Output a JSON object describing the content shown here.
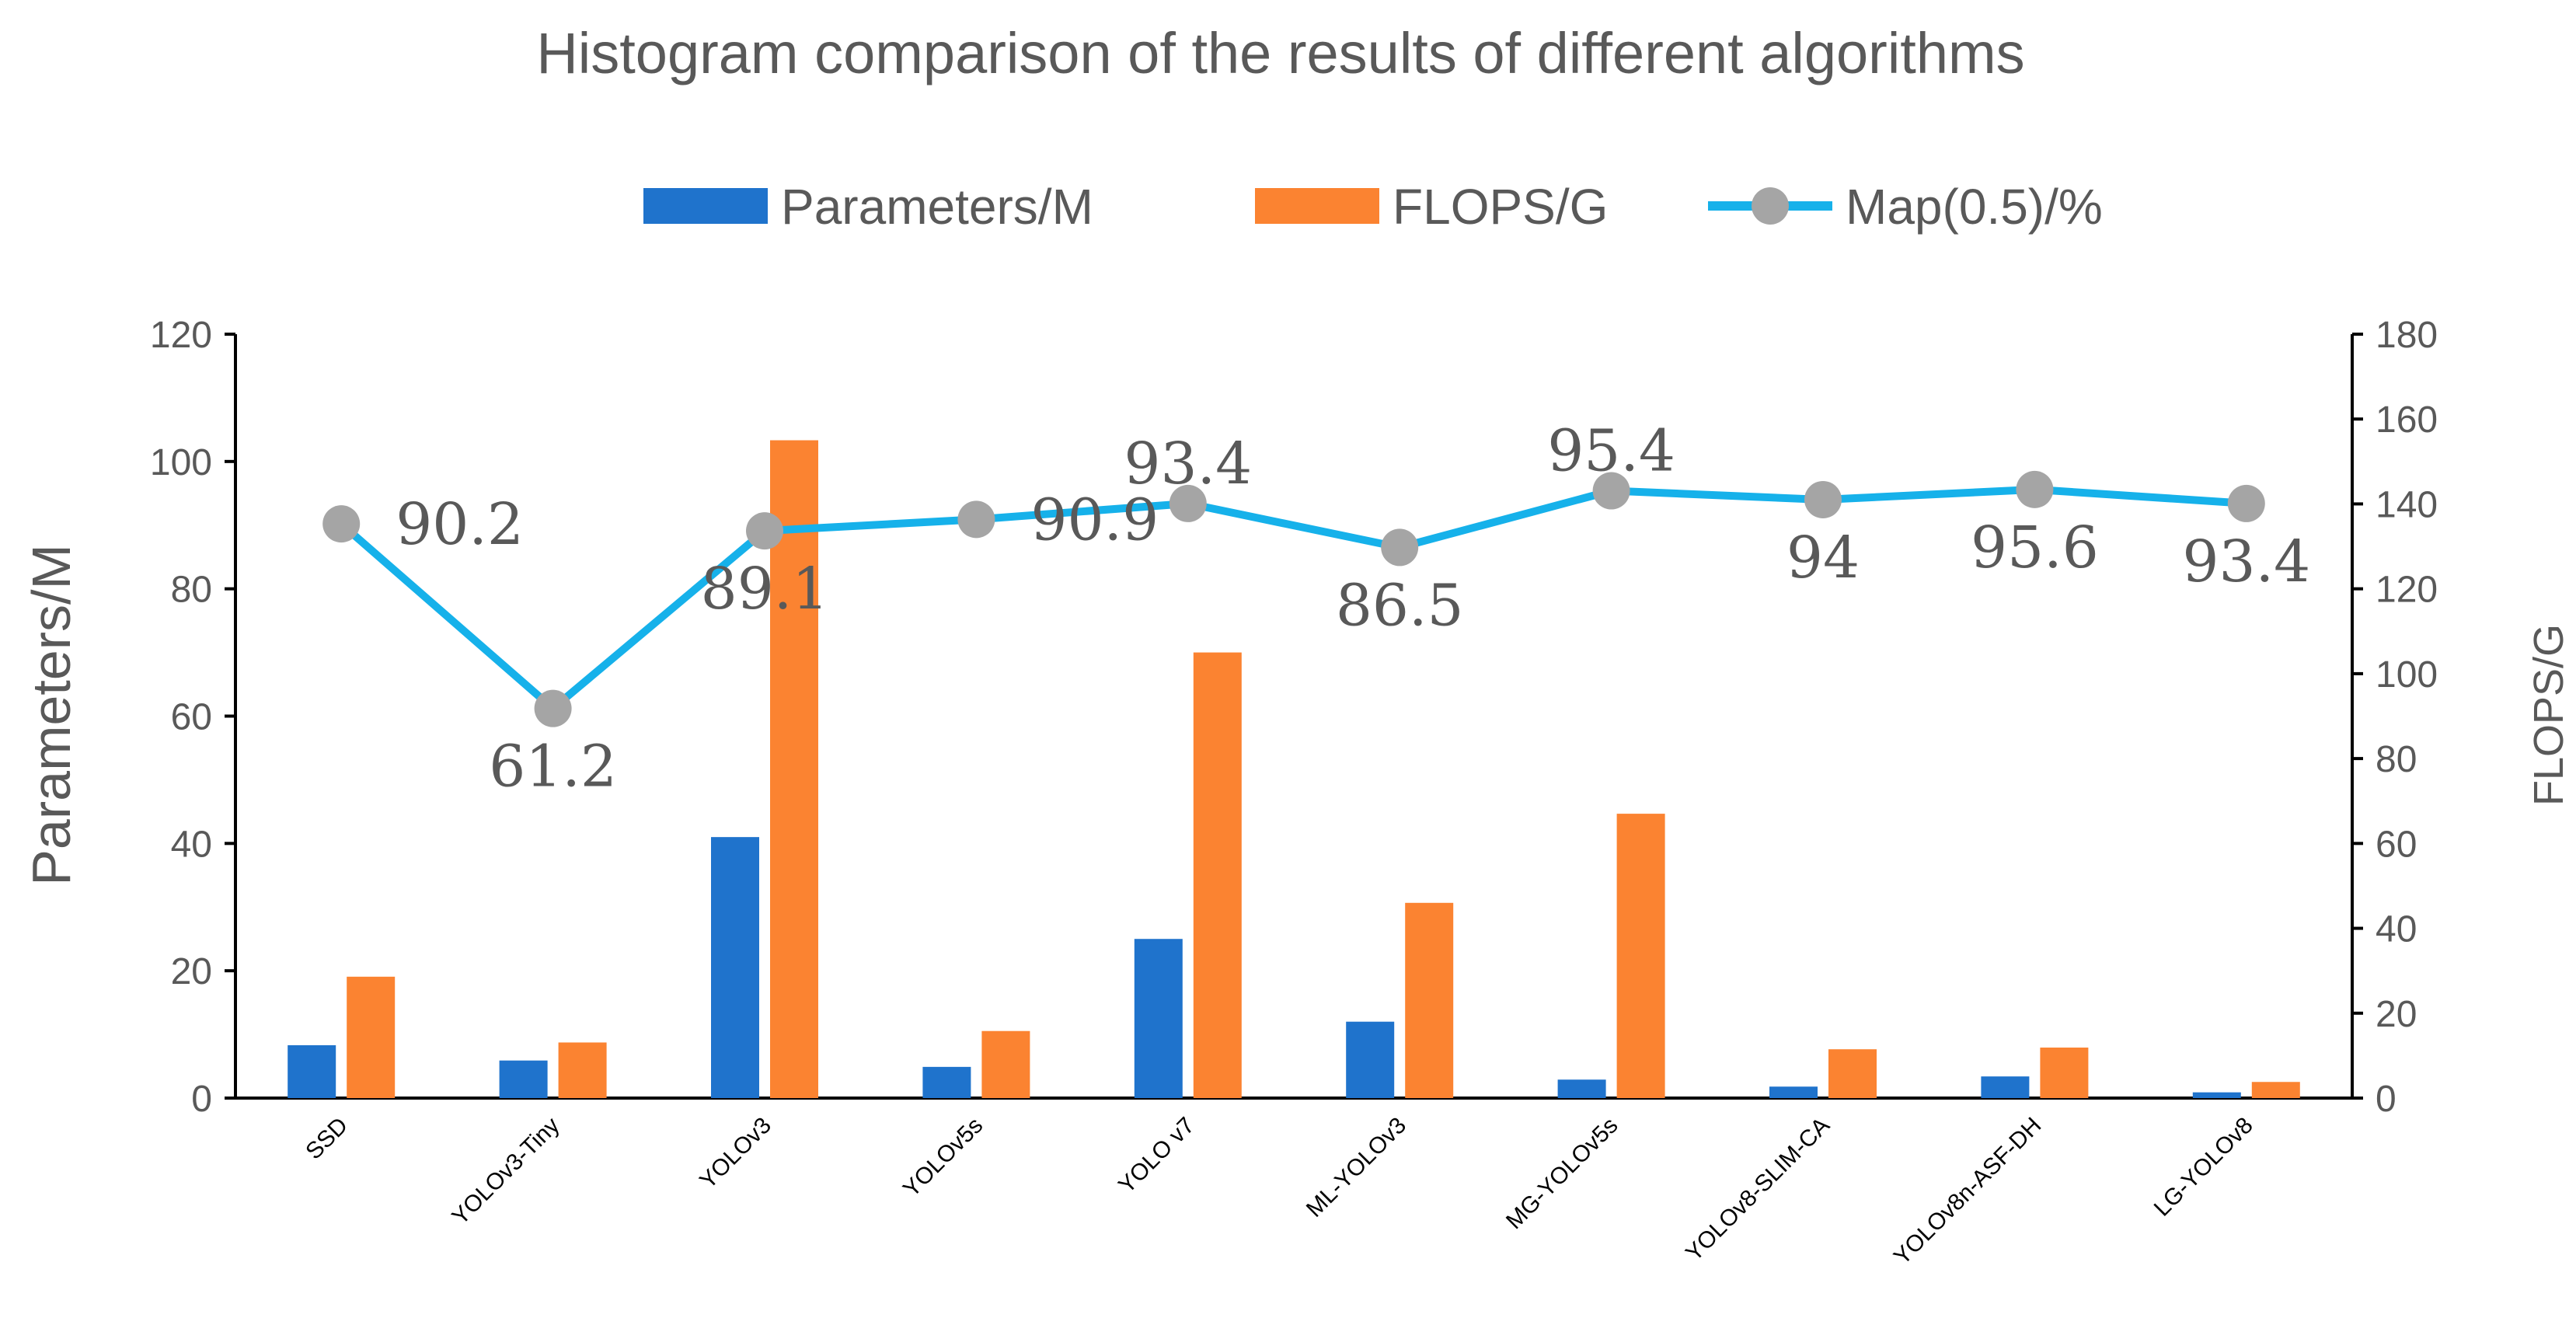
{
  "chart_data": {
    "type": "bar",
    "title": "Histogram comparison of the results  of different algorithms",
    "categories": [
      "SSD",
      "YOLOv3-Tiny",
      "YOLOv3",
      "YOLOv5s",
      "YOLO v7",
      "ML-YOLOv3",
      "MG-YOLOv5s",
      "YOLOv8-SLIM-CA",
      "YOLOv8n-ASF-DH",
      "LG-YOLOv8"
    ],
    "ylabel": "Parameters/M",
    "y2label": "FLOPS/G",
    "ylim": [
      0,
      120
    ],
    "y2lim": [
      0,
      180
    ],
    "yticks": [
      "0",
      "20",
      "40",
      "60",
      "80",
      "100",
      "120"
    ],
    "y2ticks": [
      "0",
      "20",
      "40",
      "60",
      "80",
      "100",
      "120",
      "140",
      "160",
      "180"
    ],
    "legend_position": "top-center",
    "series": [
      {
        "name": "Parameters/M",
        "type": "bar",
        "axis": "left",
        "color": "#1F73CC",
        "values": [
          8.3,
          5.9,
          41,
          4.9,
          25,
          12,
          2.9,
          1.8,
          3.4,
          0.9
        ]
      },
      {
        "name": "FLOPS/G",
        "type": "bar",
        "axis": "right",
        "color": "#FB8331",
        "values": [
          28.6,
          13.1,
          155,
          15.8,
          105,
          46,
          67,
          11.5,
          11.9,
          3.8
        ]
      },
      {
        "name": "Map(0.5)/%",
        "type": "line",
        "axis": "left",
        "color": "#16B1EA",
        "marker_color": "#A5A5A5",
        "values": [
          90.2,
          61.2,
          89.1,
          90.9,
          93.4,
          86.5,
          95.4,
          94,
          95.6,
          93.4
        ],
        "labels": [
          "90.2",
          "61.2",
          "89.1",
          "90.9",
          "93.4",
          "86.5",
          "95.4",
          "94",
          "95.6",
          "93.4"
        ]
      }
    ]
  }
}
